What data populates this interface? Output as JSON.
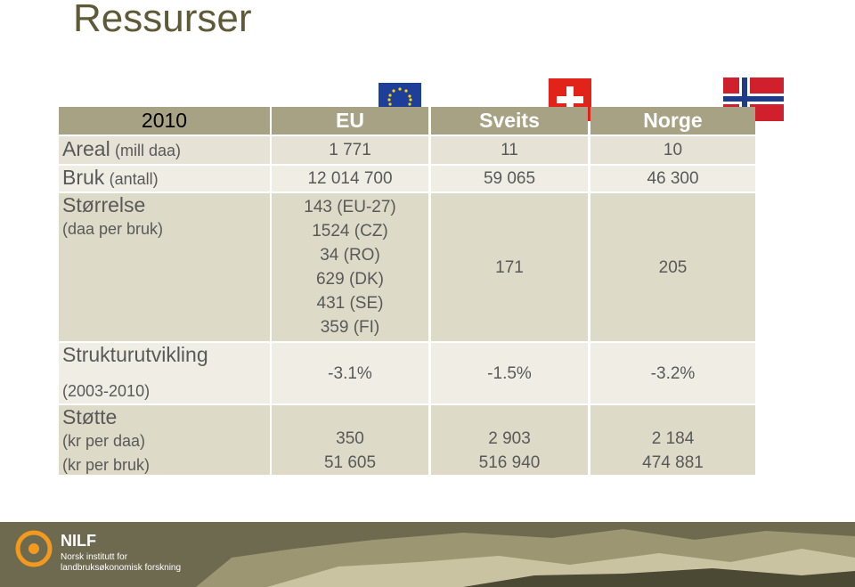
{
  "title": "Ressurser",
  "table": {
    "header": [
      "2010",
      "EU",
      "Sveits",
      "Norge"
    ],
    "rows": [
      {
        "label": "Areal",
        "notes": [
          "(mill daa)"
        ],
        "cells": [
          [
            "1 771"
          ],
          [
            "11"
          ],
          [
            "10"
          ]
        ]
      },
      {
        "label": "Bruk",
        "notes": [
          "(antall)"
        ],
        "cells": [
          [
            "12 014 700"
          ],
          [
            "59 065"
          ],
          [
            "46 300"
          ]
        ]
      },
      {
        "label": "Størrelse",
        "notes": [
          "(daa per bruk)"
        ],
        "cells": [
          [
            "143 (EU-27)",
            "1524 (CZ)",
            "34 (RO)",
            "629 (DK)",
            "431 (SE)",
            "359 (FI)"
          ],
          [
            "171"
          ],
          [
            "205"
          ]
        ]
      },
      {
        "label": "Strukturutvikling",
        "notes": [
          "(2003-2010)"
        ],
        "cells": [
          [
            "-3.1%"
          ],
          [
            "-1.5%"
          ],
          [
            "-3.2%"
          ]
        ]
      },
      {
        "label": "Støtte",
        "notes": [
          "(kr per daa)",
          "(kr per bruk)"
        ],
        "cells": [
          [
            "350",
            "51 605"
          ],
          [
            "2 903",
            "516 940"
          ],
          [
            "2 184",
            "474 881"
          ]
        ]
      }
    ]
  },
  "footer": {
    "logo": "NILF",
    "lines": [
      "Norsk institutt for",
      "landbruksøkonomisk forskning"
    ]
  }
}
